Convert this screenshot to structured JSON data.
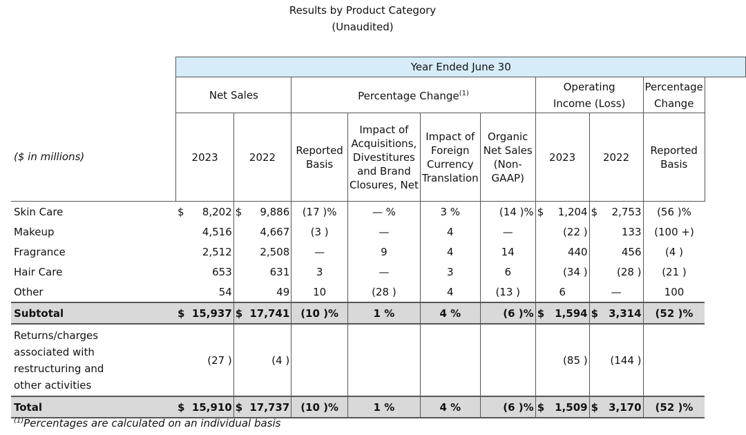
{
  "title": "Results by Product Category",
  "subtitle": "(Unaudited)",
  "header": {
    "year_ended": "Year Ended June 30",
    "net_sales": "Net Sales",
    "pct_change": "Percentage Change",
    "pct_change_note": "(1)",
    "op_income_1": "Operating",
    "op_income_2": "Income (Loss)",
    "pct_change_2_1": "Percentage",
    "pct_change_2_2": "Change",
    "units": "($ in millions)",
    "col_2023": "2023",
    "col_2022": "2022",
    "reported_1": "Reported",
    "reported_2": "Basis",
    "acq_1": "Impact of",
    "acq_2": "Acquisitions,",
    "acq_3": "Divestitures",
    "acq_4": "and Brand",
    "acq_5": "Closures, Net",
    "fx_1": "Impact of",
    "fx_2": "Foreign",
    "fx_3": "Currency",
    "fx_4": "Translation",
    "org_1": "Organic",
    "org_2": "Net Sales",
    "org_3": "(Non-",
    "org_4": "GAAP)",
    "oi_2023": "2023",
    "oi_2022": "2022",
    "rep2_1": "Reported",
    "rep2_2": "Basis"
  },
  "currency": "$",
  "rows": {
    "skin": {
      "label": "Skin Care",
      "ns23": "8,202",
      "ns22": "9,886",
      "rep": "(17 )%",
      "acq": "— %",
      "fx": "3 %",
      "org": "(14 )%",
      "oi23": "1,204",
      "oi22": "2,753",
      "oirep": "(56 )%"
    },
    "makeup": {
      "label": "Makeup",
      "ns23": "4,516",
      "ns22": "4,667",
      "rep": "(3 )",
      "acq": "—",
      "fx": "4",
      "org": "—",
      "oi23": "(22 )",
      "oi22": "133",
      "oirep": "(100 +)"
    },
    "fragrance": {
      "label": "Fragrance",
      "ns23": "2,512",
      "ns22": "2,508",
      "rep": "—",
      "acq": "9",
      "fx": "4",
      "org": "14",
      "oi23": "440",
      "oi22": "456",
      "oirep": "(4 )"
    },
    "hair": {
      "label": "Hair Care",
      "ns23": "653",
      "ns22": "631",
      "rep": "3",
      "acq": "—",
      "fx": "3",
      "org": "6",
      "oi23": "(34 )",
      "oi22": "(28 )",
      "oirep": "(21 )"
    },
    "other": {
      "label": "Other",
      "ns23": "54",
      "ns22": "49",
      "rep": "10",
      "acq": "(28 )",
      "fx": "4",
      "org": "(13 )",
      "oi23": "6",
      "oi22": "—",
      "oirep": "100"
    },
    "subtotal": {
      "label": "Subtotal",
      "ns23": "15,937",
      "ns22": "17,741",
      "rep": "(10 )%",
      "acq": "1 %",
      "fx": "4 %",
      "org": "(6 )%",
      "oi23": "1,594",
      "oi22": "3,314",
      "oirep": "(52 )%"
    },
    "returns": {
      "label": "Returns/charges associated with restructuring and other activities",
      "ns23": "(27 )",
      "ns22": "(4 )",
      "oi23": "(85 )",
      "oi22": "(144 )"
    },
    "total": {
      "label": "Total",
      "ns23": "15,910",
      "ns22": "17,737",
      "rep": "(10 )%",
      "acq": "1 %",
      "fx": "4 %",
      "org": "(6 )%",
      "oi23": "1,509",
      "oi22": "3,170",
      "oirep": "(52 )%"
    }
  },
  "footnote_mark": "(1)",
  "footnote": "Percentages are calculated on an individual basis"
}
